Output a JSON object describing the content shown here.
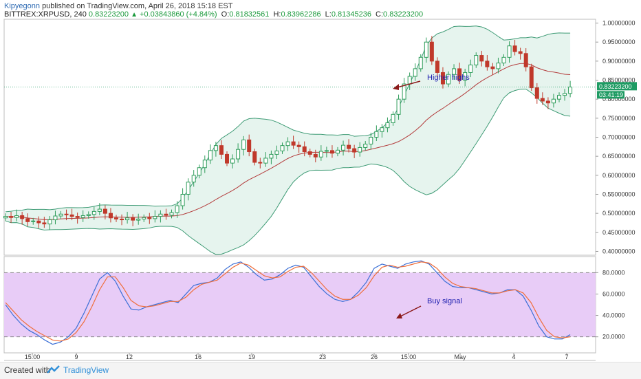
{
  "header": {
    "user": "Kipyegonn",
    "published": "published on TradingView.com, April 26, 2018 15:18 EST",
    "symbol": "BITTREX:XRPUSD, 240",
    "last": "0.83223200",
    "change_arrow": "▲",
    "change": "+0.03843860 (+4.84%)",
    "open_label": "O:",
    "open": "0.81832561",
    "high_label": "H:",
    "high": "0.83962286",
    "low_label": "L:",
    "low": "0.81345236",
    "close_label": "C:",
    "close": "0.83223200"
  },
  "footer": {
    "created": "Created with",
    "brand": "TradingView"
  },
  "colors": {
    "up": "#2e9c5a",
    "down": "#c0392b",
    "band": "#3e9b75",
    "band_fill": "#e6f4ee",
    "basis": "#b33b3b",
    "k_line": "#3b6fd6",
    "d_line": "#ef6e3b",
    "stoch_bg": "#e8ccf7",
    "arrow": "#8b1a1a",
    "annotation": "#2020b0",
    "price_tag": "#1e9b63"
  },
  "chart_data": [
    {
      "type": "candlestick",
      "indicator": "Bollinger Bands (20)",
      "y_ticks": [
        "1.00000000",
        "0.95000000",
        "0.90000000",
        "0.85000000",
        "0.80000000",
        "0.75000000",
        "0.70000000",
        "0.65000000",
        "0.60000000",
        "0.55000000",
        "0.50000000",
        "0.45000000",
        "0.40000000"
      ],
      "ylim": [
        0.39,
        1.01
      ],
      "last_price": "0.83223200",
      "countdown": "03:41:19",
      "annotation": "Higher highs",
      "x_ticks": [
        "15:00",
        "9",
        "12",
        "16",
        "19",
        "23",
        "26",
        "15:00",
        "May",
        "4",
        "7"
      ],
      "close": [
        0.492,
        0.489,
        0.494,
        0.486,
        0.478,
        0.48,
        0.475,
        0.472,
        0.483,
        0.493,
        0.498,
        0.496,
        0.492,
        0.489,
        0.494,
        0.497,
        0.505,
        0.511,
        0.5,
        0.488,
        0.485,
        0.483,
        0.488,
        0.482,
        0.485,
        0.489,
        0.486,
        0.492,
        0.498,
        0.495,
        0.502,
        0.52,
        0.55,
        0.582,
        0.6,
        0.62,
        0.64,
        0.665,
        0.678,
        0.655,
        0.632,
        0.643,
        0.668,
        0.693,
        0.662,
        0.634,
        0.632,
        0.645,
        0.655,
        0.664,
        0.678,
        0.688,
        0.679,
        0.675,
        0.662,
        0.655,
        0.648,
        0.663,
        0.665,
        0.658,
        0.666,
        0.679,
        0.67,
        0.661,
        0.673,
        0.682,
        0.7,
        0.715,
        0.725,
        0.738,
        0.76,
        0.8,
        0.84,
        0.86,
        0.88,
        0.91,
        0.95,
        0.9,
        0.87,
        0.84,
        0.865,
        0.88,
        0.85,
        0.87,
        0.89,
        0.915,
        0.9,
        0.885,
        0.88,
        0.895,
        0.91,
        0.94,
        0.925,
        0.92,
        0.885,
        0.83,
        0.802,
        0.795,
        0.79,
        0.8,
        0.81,
        0.815,
        0.832
      ]
    },
    {
      "type": "line",
      "indicator": "Stochastic",
      "y_ticks": [
        "80.0000",
        "60.0000",
        "40.0000",
        "20.0000"
      ],
      "ylim": [
        5,
        95
      ],
      "band": [
        20,
        80
      ],
      "annotation": "Buy signal",
      "series": [
        {
          "values": [
            50,
            40,
            32,
            26,
            22,
            17,
            13,
            15,
            20,
            28,
            42,
            58,
            74,
            80,
            72,
            58,
            46,
            45,
            48,
            50,
            52,
            54,
            52,
            60,
            68,
            70,
            71,
            75,
            83,
            88,
            90,
            85,
            78,
            73,
            74,
            78,
            84,
            87,
            85,
            76,
            67,
            60,
            55,
            53,
            55,
            62,
            71,
            84,
            88,
            86,
            84,
            88,
            90,
            91,
            88,
            80,
            72,
            67,
            66,
            66,
            64,
            62,
            60,
            61,
            64,
            64,
            58,
            45,
            30,
            20,
            18,
            18,
            22
          ]
        },
        {
          "values": [
            52,
            44,
            36,
            30,
            25,
            21,
            17,
            16,
            18,
            24,
            34,
            48,
            64,
            76,
            76,
            66,
            54,
            49,
            48,
            49,
            51,
            53,
            53,
            57,
            64,
            69,
            71,
            73,
            79,
            85,
            89,
            87,
            82,
            77,
            75,
            76,
            81,
            85,
            86,
            80,
            72,
            64,
            58,
            55,
            55,
            59,
            66,
            77,
            85,
            87,
            85,
            86,
            88,
            90,
            89,
            84,
            76,
            70,
            67,
            66,
            65,
            63,
            61,
            61,
            63,
            64,
            61,
            52,
            38,
            26,
            20,
            19,
            20
          ]
        }
      ]
    }
  ]
}
